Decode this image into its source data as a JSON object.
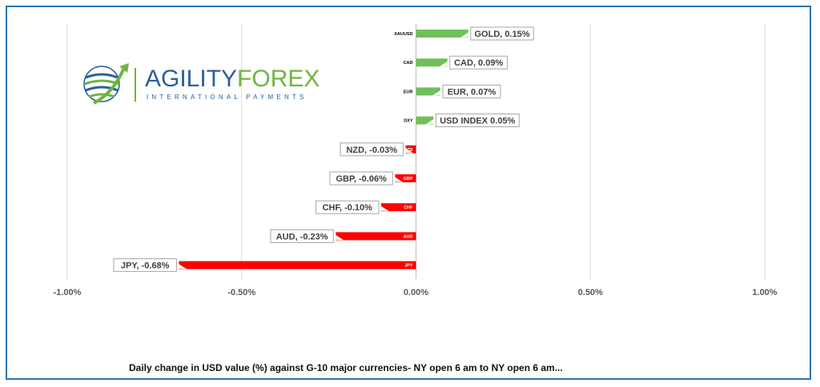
{
  "logo": {
    "brand_part1": "AGILITY",
    "brand_part2": "FOREX",
    "tagline": "INTERNATIONAL PAYMENTS",
    "colors": {
      "blue": "#2b5f9e",
      "green": "#6fb43f"
    }
  },
  "caption": "Daily change in  USD value (%)  against  G-10 major currencies- NY open 6 am to NY open 6 am...",
  "chart_data": {
    "type": "bar",
    "orientation": "horizontal",
    "categories": [
      "XAUUSD",
      "CAD",
      "EUR",
      "DXY",
      "NZD",
      "GBP",
      "CHF",
      "AUD",
      "JPY"
    ],
    "values": [
      0.15,
      0.09,
      0.07,
      0.05,
      -0.03,
      -0.06,
      -0.1,
      -0.23,
      -0.68
    ],
    "data_labels": [
      "GOLD, 0.15%",
      "CAD, 0.09%",
      "EUR, 0.07%",
      "USD INDEX 0.05%",
      "NZD, -0.03%",
      "GBP, -0.06%",
      "CHF, -0.10%",
      "AUD, -0.23%",
      "JPY, -0.68%"
    ],
    "xlim": [
      -1.0,
      1.0
    ],
    "xticks": [
      -1.0,
      -0.5,
      0.0,
      0.5,
      1.0
    ],
    "xtick_labels": [
      "-1.00%",
      "-0.50%",
      "0.00%",
      "0.50%",
      "1.00%"
    ],
    "grid": "vertical",
    "colors": {
      "positive": "#70c05a",
      "negative": "#ff0000",
      "grid": "#d9d9d9",
      "axis": "#bfbfbf",
      "label_border": "#a6a6a6"
    }
  }
}
